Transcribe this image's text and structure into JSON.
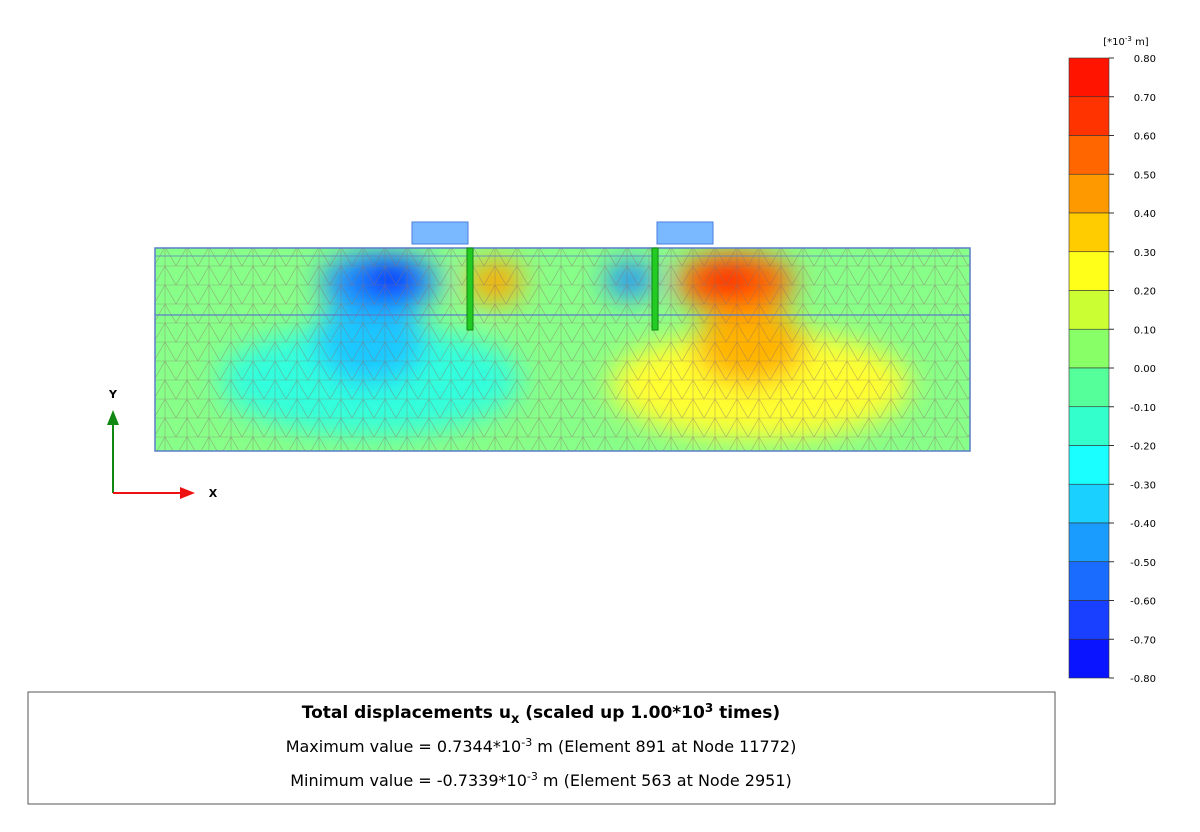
{
  "legend": {
    "unit": {
      "prefix": "[*10",
      "exponent": "-3",
      "suffix": " m]"
    },
    "ticks": [
      {
        "value": 0.8,
        "label": "0.80"
      },
      {
        "value": 0.7,
        "label": "0.70"
      },
      {
        "value": 0.6,
        "label": "0.60"
      },
      {
        "value": 0.5,
        "label": "0.50"
      },
      {
        "value": 0.4,
        "label": "0.40"
      },
      {
        "value": 0.3,
        "label": "0.30"
      },
      {
        "value": 0.2,
        "label": "0.20"
      },
      {
        "value": 0.1,
        "label": "0.10"
      },
      {
        "value": 0,
        "label": "0.00"
      },
      {
        "value": -0.1,
        "label": "-0.10"
      },
      {
        "value": -0.2,
        "label": "-0.20"
      },
      {
        "value": -0.3,
        "label": "-0.30"
      },
      {
        "value": -0.4,
        "label": "-0.40"
      },
      {
        "value": -0.5,
        "label": "-0.50"
      },
      {
        "value": -0.6,
        "label": "-0.60"
      },
      {
        "value": -0.7,
        "label": "-0.70"
      },
      {
        "value": -0.8,
        "label": "-0.80"
      }
    ],
    "band_colors": [
      "#ff1400",
      "#ff3300",
      "#ff6600",
      "#ff9900",
      "#ffcc00",
      "#ffff1a",
      "#ccff33",
      "#88ff66",
      "#55ff99",
      "#33ffcc",
      "#1affff",
      "#1ad0ff",
      "#1a9cff",
      "#1a6cff",
      "#1a40ff",
      "#0a14ff"
    ]
  },
  "axes": {
    "y": "Y",
    "x": "X"
  },
  "info": {
    "title": {
      "text": "Total displacements u",
      "subscript": "x",
      "middle": " (scaled up 1.00*10",
      "exponent": "3",
      "suffix": " times)"
    },
    "max": {
      "prefix": "Maximum value = 0.7344*10",
      "exponent": "-3",
      "suffix": " m (Element 891 at Node 11772)"
    },
    "min": {
      "prefix": "Minimum value = -0.7339*10",
      "exponent": "-3",
      "suffix": " m (Element 563 at Node 2951)"
    }
  }
}
